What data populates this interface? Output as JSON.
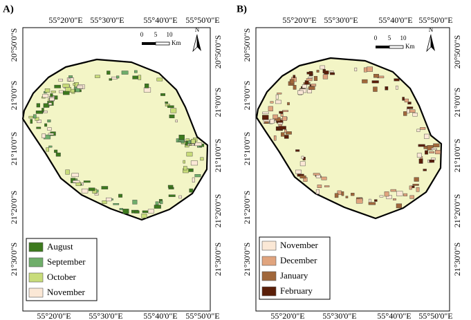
{
  "panels": [
    {
      "label": "A)",
      "top_ticks": [
        "55°20'0\"E",
        "55°30'0\"E",
        "55°40'0\"E",
        "55°50'0\"E"
      ],
      "bottom_ticks": [
        "55°20'0\"E",
        "55°30'0\"E",
        "55°40'0\"E",
        "55°50'0\"E"
      ],
      "left_ticks": [
        "20°50'0\"S",
        "21°0'0\"S",
        "21°10'0\"S",
        "21°20'0\"S",
        "21°30'0\"S"
      ],
      "right_ticks": [
        "20°50'0\"S",
        "21°0'0\"S",
        "21°10'0\"S",
        "21°20'0\"S",
        "21°30'0\"S"
      ],
      "scale": {
        "labels": [
          "0",
          "5",
          "10"
        ],
        "unit": "Km"
      },
      "north": "N",
      "legend": [
        {
          "label": "August",
          "color": "#3d7a1e"
        },
        {
          "label": "September",
          "color": "#6fae6a"
        },
        {
          "label": "October",
          "color": "#c8dc7a"
        },
        {
          "label": "November",
          "color": "#fbe8d6"
        }
      ]
    },
    {
      "label": "B)",
      "top_ticks": [
        "55°20'0\"E",
        "55°30'0\"E",
        "55°40'0\"E",
        "55°50'0\"E"
      ],
      "bottom_ticks": [
        "55°20'0\"E",
        "55°30'0\"E",
        "55°40'0\"E",
        "55°50'0\"E"
      ],
      "left_ticks": [
        "20°50'0\"S",
        "21°0'0\"S",
        "21°10'0\"S",
        "21°20'0\"S",
        "21°30'0\"S"
      ],
      "right_ticks": [
        "20°50'0\"S",
        "21°0'0\"S",
        "21°10'0\"S",
        "21°20'0\"S",
        "21°30'0\"S"
      ],
      "scale": {
        "labels": [
          "0",
          "5",
          "10"
        ],
        "unit": "Km"
      },
      "north": "N",
      "legend": [
        {
          "label": "November",
          "color": "#fbe8d6"
        },
        {
          "label": "December",
          "color": "#e0a47e"
        },
        {
          "label": "January",
          "color": "#a0673a"
        },
        {
          "label": "February",
          "color": "#5a1e08"
        }
      ]
    }
  ]
}
